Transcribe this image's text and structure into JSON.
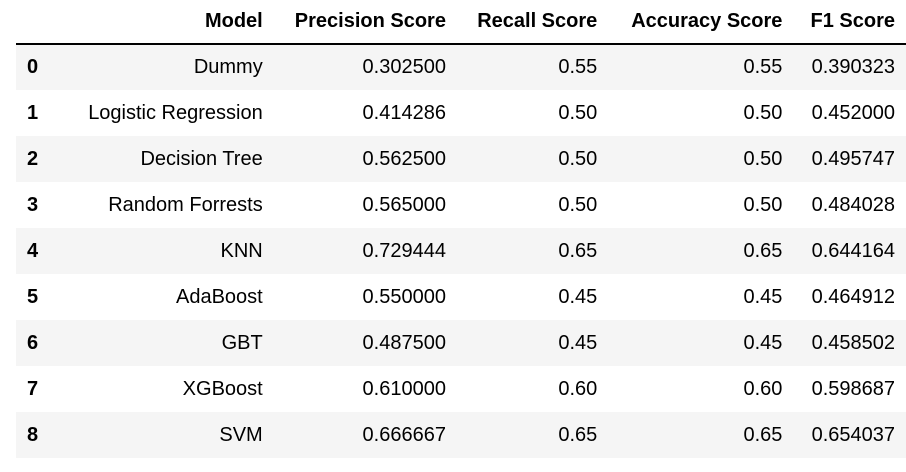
{
  "table": {
    "columns": [
      "",
      "Model",
      "Precision Score",
      "Recall Score",
      "Accuracy Score",
      "F1 Score"
    ],
    "rows": [
      [
        "0",
        "Dummy",
        "0.302500",
        "0.55",
        "0.55",
        "0.390323"
      ],
      [
        "1",
        "Logistic Regression",
        "0.414286",
        "0.50",
        "0.50",
        "0.452000"
      ],
      [
        "2",
        "Decision Tree",
        "0.562500",
        "0.50",
        "0.50",
        "0.495747"
      ],
      [
        "3",
        "Random Forrests",
        "0.565000",
        "0.50",
        "0.50",
        "0.484028"
      ],
      [
        "4",
        "KNN",
        "0.729444",
        "0.65",
        "0.65",
        "0.644164"
      ],
      [
        "5",
        "AdaBoost",
        "0.550000",
        "0.45",
        "0.45",
        "0.464912"
      ],
      [
        "6",
        "GBT",
        "0.487500",
        "0.45",
        "0.45",
        "0.458502"
      ],
      [
        "7",
        "XGBoost",
        "0.610000",
        "0.60",
        "0.60",
        "0.598687"
      ],
      [
        "8",
        "SVM",
        "0.666667",
        "0.65",
        "0.65",
        "0.654037"
      ]
    ]
  }
}
